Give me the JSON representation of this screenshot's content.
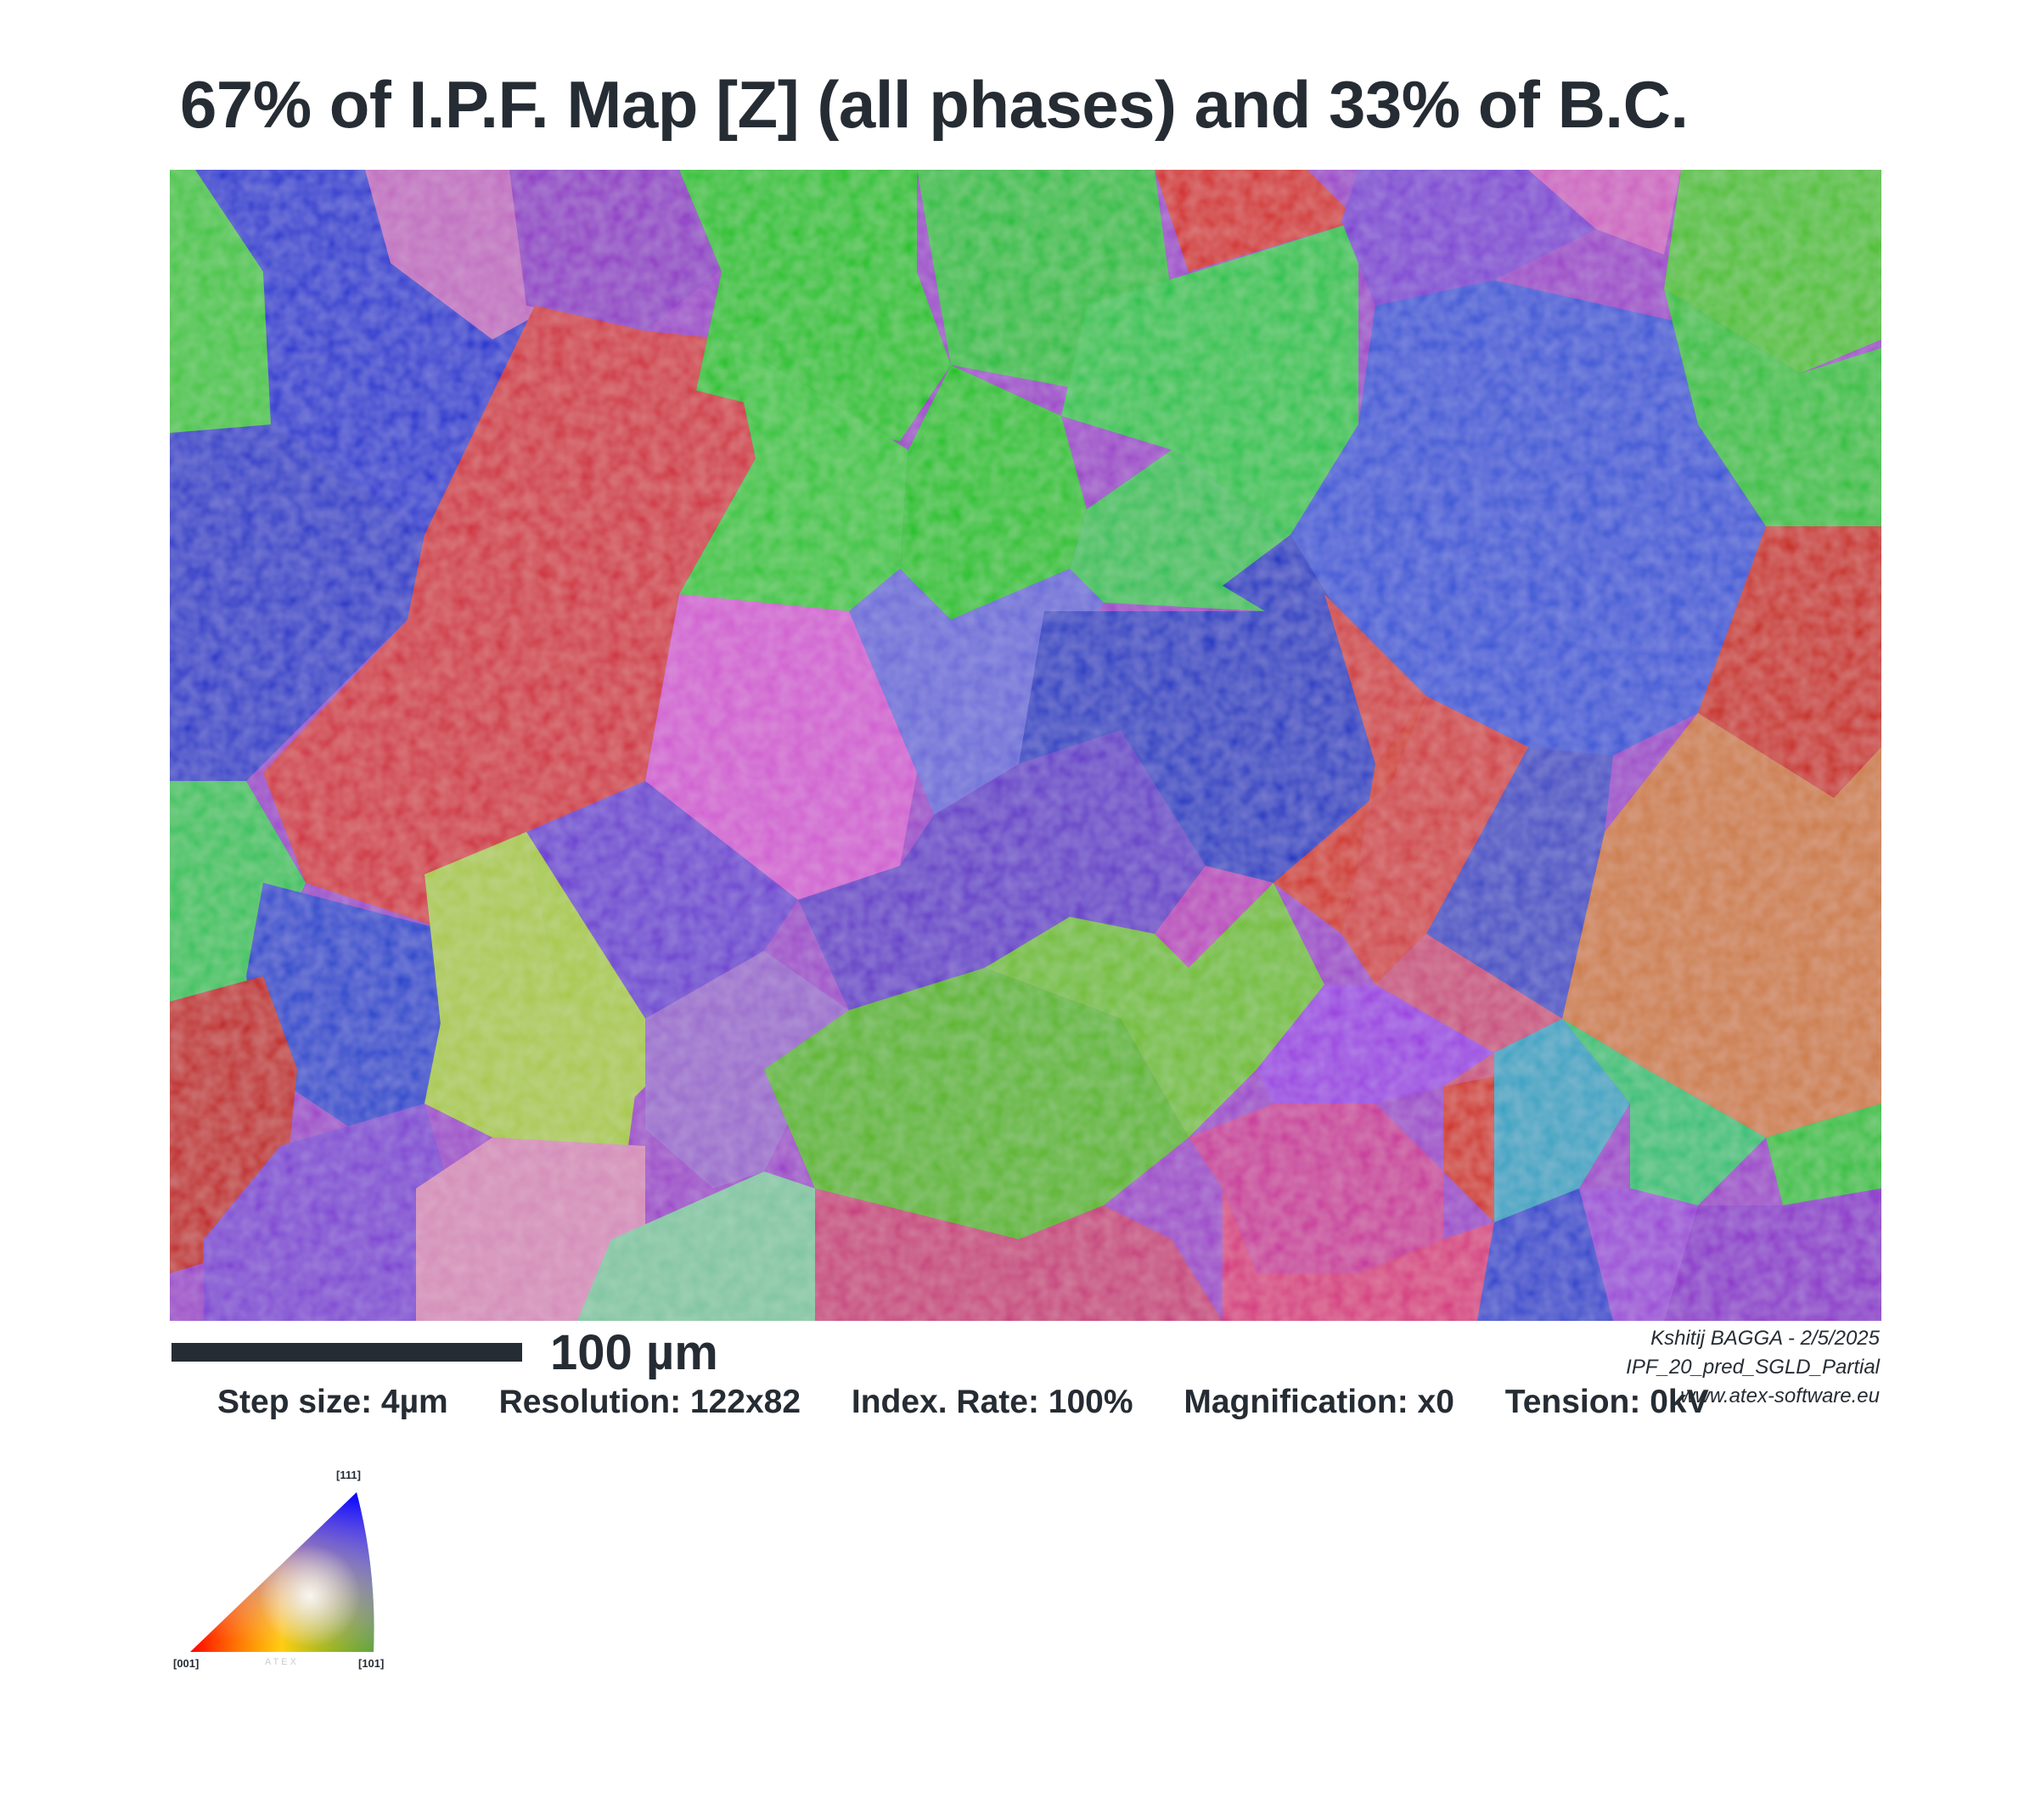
{
  "title": "67% of I.P.F. Map [Z] (all phases) and 33% of B.C.",
  "scale_bar": {
    "label": "100 µm"
  },
  "credits": {
    "author_date": "Kshitij BAGGA - 2/5/2025",
    "file_name": "IPF_20_pred_SGLD_Partial",
    "website": "www.atex-software.eu"
  },
  "stats": {
    "step_size": "Step size: 4µm",
    "resolution": "Resolution: 122x82",
    "index_rate": "Index. Rate: 100%",
    "magnification": "Magnification: x0",
    "tension": "Tension: 0kV"
  },
  "ipf_legend": {
    "top_label": "[111]",
    "left_label": "[001]",
    "right_label": "[101]",
    "watermark": "ATEX",
    "colors": {
      "001": "#ff0000",
      "101": "#00ff00",
      "111": "#0000ff"
    }
  },
  "map_grid": {
    "columns": 122,
    "rows": 82
  }
}
